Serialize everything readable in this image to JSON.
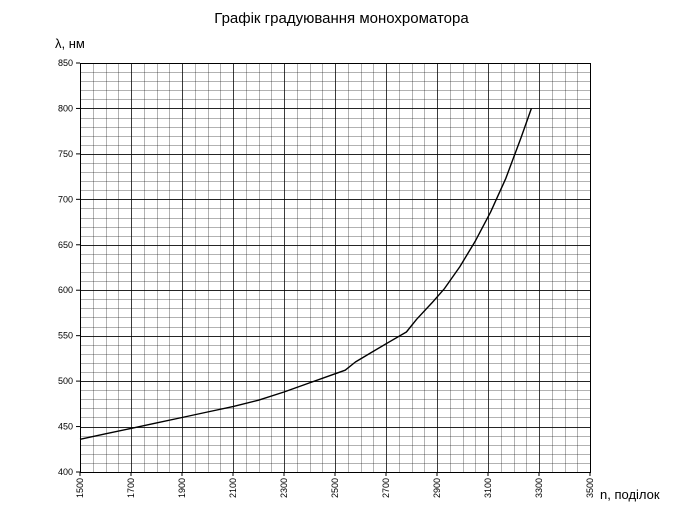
{
  "chart_data": {
    "type": "line",
    "title": "Графік градуювання монохроматора",
    "ylabel": "λ, нм",
    "xlabel": "n, поділок",
    "xlim": [
      1500,
      3500
    ],
    "ylim": [
      400,
      850
    ],
    "x_ticks": [
      1500,
      1700,
      1900,
      2100,
      2300,
      2500,
      2700,
      2900,
      3100,
      3300,
      3500
    ],
    "y_ticks": [
      400,
      450,
      500,
      550,
      600,
      650,
      700,
      750,
      800,
      850
    ],
    "x_minor_step": 50,
    "y_minor_step": 10,
    "grid": true,
    "line_color": "#000000",
    "grid_color": "#000000",
    "series": [
      {
        "x": [
          1500,
          1600,
          1700,
          1800,
          1900,
          2000,
          2100,
          2200,
          2300,
          2400,
          2500,
          2540,
          2580,
          2640,
          2700,
          2780,
          2820,
          2880,
          2930,
          2990,
          3050,
          3110,
          3170,
          3230,
          3270
        ],
        "y": [
          436,
          442,
          448,
          454,
          460,
          466,
          472,
          479,
          488,
          498,
          508,
          512,
          521,
          531,
          541,
          554,
          568,
          586,
          602,
          626,
          654,
          686,
          723,
          768,
          800
        ]
      }
    ]
  }
}
